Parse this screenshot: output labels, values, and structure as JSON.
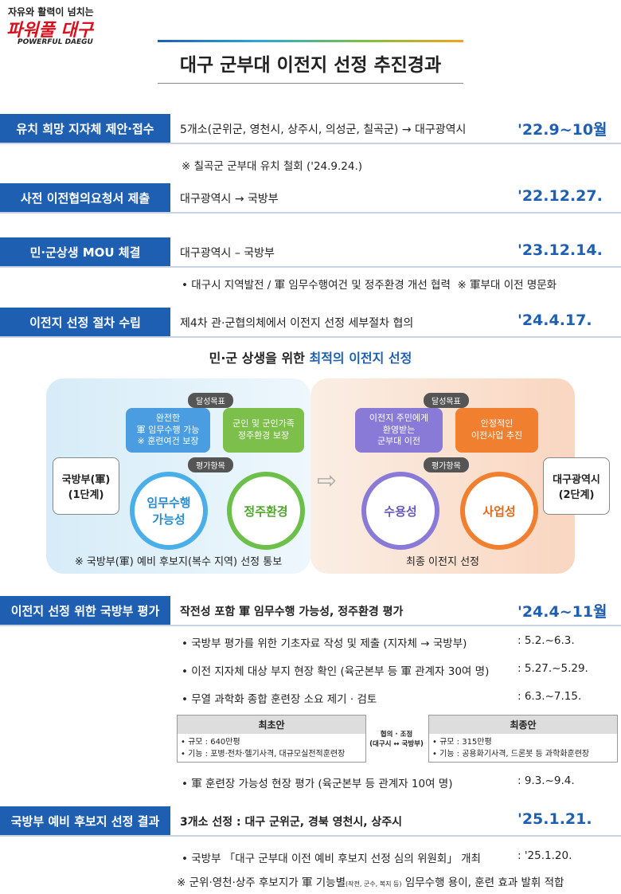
{
  "header": {
    "slogan": "자유와 활력이 넘치는",
    "brand": "파워풀 대구",
    "brand_en": "POWERFUL DAEGU",
    "title": "대구 군부대 이전지 선정 추진경과"
  },
  "sections": [
    {
      "label": "유치 희망 지자체 제안·접수",
      "desc": "5개소(군위군, 영천시, 상주시, 의성군, 칠곡군) → 대구광역시",
      "date": "'22.9~10월",
      "notes": [
        "※ 칠곡군 군부대 유치 철회 ('24.9.24.)"
      ]
    },
    {
      "label": "사전 이전협의요청서 제출",
      "desc": "대구광역시 → 국방부",
      "date": "'22.12.27."
    },
    {
      "label": "민·군상생 MOU 체결",
      "desc": "대구광역시 – 국방부",
      "date": "'23.12.14.",
      "notes": [
        "• 대구시 지역발전 / 軍 임무수행여건 및 정주환경 개선 협력  ※ 軍부대 이전 명문화"
      ]
    },
    {
      "label": "이전지 선정 절차 수립",
      "desc": "제4차 관·군협의체에서 이전지 선정 세부절차 협의",
      "date": "'24.4.17."
    }
  ],
  "diagram": {
    "heading": [
      "민·군 상생을 위한",
      "최적의 이전지 선정"
    ],
    "left": {
      "goal_label": "달성목표",
      "goals": [
        "완전한\n軍 임무수행 가능\n※ 훈련여건 보장",
        "군인 및 군인가족\n정주환경 보장"
      ],
      "eval_label": "평가항목",
      "evals": [
        "임무수행\n가능성",
        "정주환경"
      ],
      "side": "국방부(軍)\n(1단계)",
      "note": "※ 국방부(軍) 예비 후보지(복수 지역) 선정 통보"
    },
    "right": {
      "goal_label": "달성목표",
      "goals": [
        "이전지 주민에게\n환영받는\n군부대 이전",
        "안정적인\n이전사업 추진"
      ],
      "eval_label": "평가항목",
      "evals": [
        "수용성",
        "사업성"
      ],
      "side": "대구광역시\n(2단계)",
      "note": "최종 이전지 선정"
    }
  },
  "evaluation": {
    "label": "이전지 선정 위한 국방부 평가",
    "desc": "작전성 포함 軍 임무수행 가능성, 정주환경 평가",
    "date": "'24.4~11월",
    "items": [
      {
        "text": "• 국방부 평가를 위한 기초자료 작성 및 제출 (지자체 → 국방부)",
        "date": ": 5.2.~6.3."
      },
      {
        "text": "• 이전 지자체 대상 부지 현장 확인 (육군본부 등 軍 관계자 30여 명)",
        "date": ": 5.27.~5.29."
      },
      {
        "text": "• 무열 과학화 종합 훈련장 소요 제기 · 검토",
        "date": ": 6.3.~7.15."
      },
      {
        "text": "• 軍 훈련장 가능성 현장 평가 (육군본부 등 관계자 10여 명)",
        "date": ": 9.3.~9.4."
      }
    ],
    "compare": {
      "before_title": "최초안",
      "before": [
        "• 규모 : 640만평",
        "• 기능 : 포병·전차·헬기사격, 대규모실전적훈련장"
      ],
      "middle": "협의 · 조정\n(대구시 ↔ 국방부)",
      "after_title": "최종안",
      "after": [
        "• 규모 : 315만평",
        "• 기능 : 공용화기사격, 드론봇 등 과학화훈련장"
      ]
    }
  },
  "result": {
    "label": "국방부 예비 후보지 선정 결과",
    "desc": "3개소 선정 : 대구 군위군, 경북 영천시, 상주시",
    "date": "'25.1.21.",
    "items": [
      {
        "text": "• 국방부 「대구 군부대 이전 예비 후보지 선정 심의 위원회」 개최",
        "date": ": '25.1.20."
      }
    ],
    "footnote": [
      "※ 군위·영천·상주 후보지가 軍 기능별",
      "(작전, 군수, 복지 등)",
      "임무수행 용이, 훈련 효과 발휘 적합"
    ]
  }
}
